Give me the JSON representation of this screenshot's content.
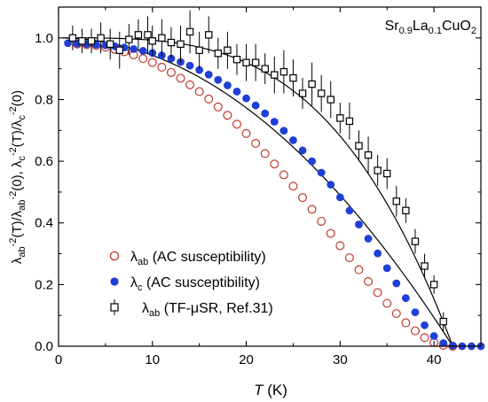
{
  "chart_data": {
    "type": "scatter",
    "annotation": {
      "base": "Sr",
      "sub1": "0.9",
      "mid": "La",
      "sub2": "0.1",
      "tail": "CuO",
      "sub3": "2"
    },
    "xlabel": {
      "italic": "T",
      "rest": " (K)"
    },
    "ylabel": {
      "p1": "λ",
      "s1": "ab",
      "p2": "-2",
      "p3": "(T)/λ",
      "s2": "ab",
      "p4": "-2",
      "p5": "(0), λ",
      "s3": "c",
      "p6": "-2",
      "p7": "(T)/λ",
      "s4": "c",
      "p8": "-2",
      "p9": "(0)"
    },
    "xlim": [
      0,
      45
    ],
    "ylim": [
      0.0,
      1.1
    ],
    "x_ticks": [
      "0",
      "10",
      "20",
      "30",
      "40"
    ],
    "y_ticks": [
      "0.0",
      "0.2",
      "0.4",
      "0.6",
      "0.8",
      "1.0"
    ],
    "legend": {
      "placement": "bottom-left",
      "entries": [
        {
          "symbol": "λ",
          "sub": "ab",
          "text": " (AC susceptibility)"
        },
        {
          "symbol": "λ",
          "sub": "c",
          "text": " (AC susceptibility)"
        },
        {
          "symbol": "λ",
          "sub": "ab",
          "text": " (TF-μSR, Ref.31)"
        }
      ]
    },
    "colors": {
      "ab_marker": "#c0392b",
      "c_marker": "#1f3fd6",
      "musr_marker": "#000000",
      "fit_line": "#000000"
    },
    "series": [
      {
        "id": "ab",
        "tc": 42.0,
        "points": [
          [
            2,
            0.98
          ],
          [
            3,
            0.978
          ],
          [
            4,
            0.975
          ],
          [
            5,
            0.97
          ],
          [
            6,
            0.963
          ],
          [
            7,
            0.955
          ],
          [
            8,
            0.945
          ],
          [
            9,
            0.933
          ],
          [
            10,
            0.92
          ],
          [
            11,
            0.905
          ],
          [
            12,
            0.888
          ],
          [
            13,
            0.869
          ],
          [
            14,
            0.848
          ],
          [
            15,
            0.826
          ],
          [
            16,
            0.802
          ],
          [
            17,
            0.776
          ],
          [
            18,
            0.749
          ],
          [
            19,
            0.72
          ],
          [
            20,
            0.69
          ],
          [
            21,
            0.658
          ],
          [
            22,
            0.625
          ],
          [
            23,
            0.591
          ],
          [
            24,
            0.556
          ],
          [
            25,
            0.519
          ],
          [
            26,
            0.482
          ],
          [
            27,
            0.444
          ],
          [
            28,
            0.405
          ],
          [
            29,
            0.366
          ],
          [
            30,
            0.326
          ],
          [
            31,
            0.287
          ],
          [
            32,
            0.248
          ],
          [
            33,
            0.21
          ],
          [
            34,
            0.174
          ],
          [
            35,
            0.139
          ],
          [
            36,
            0.106
          ],
          [
            37,
            0.076
          ],
          [
            38,
            0.05
          ],
          [
            39,
            0.028
          ],
          [
            40,
            0.012
          ],
          [
            41,
            0.003
          ],
          [
            42,
            0.0
          ]
        ]
      },
      {
        "id": "c",
        "tc": 42.5,
        "points": [
          [
            1,
            0.983
          ],
          [
            2,
            0.982
          ],
          [
            3,
            0.98
          ],
          [
            4,
            0.978
          ],
          [
            5,
            0.976
          ],
          [
            6,
            0.973
          ],
          [
            7,
            0.969
          ],
          [
            8,
            0.964
          ],
          [
            9,
            0.958
          ],
          [
            10,
            0.951
          ],
          [
            11,
            0.943
          ],
          [
            12,
            0.933
          ],
          [
            13,
            0.922
          ],
          [
            14,
            0.91
          ],
          [
            15,
            0.896
          ],
          [
            16,
            0.881
          ],
          [
            17,
            0.864
          ],
          [
            18,
            0.846
          ],
          [
            19,
            0.826
          ],
          [
            20,
            0.804
          ],
          [
            21,
            0.781
          ],
          [
            22,
            0.755
          ],
          [
            23,
            0.728
          ],
          [
            24,
            0.699
          ],
          [
            25,
            0.668
          ],
          [
            26,
            0.635
          ],
          [
            27,
            0.6
          ],
          [
            28,
            0.563
          ],
          [
            29,
            0.524
          ],
          [
            30,
            0.483
          ],
          [
            31,
            0.44
          ],
          [
            32,
            0.395
          ],
          [
            33,
            0.349
          ],
          [
            34,
            0.301
          ],
          [
            35,
            0.253
          ],
          [
            36,
            0.204
          ],
          [
            37,
            0.156
          ],
          [
            38,
            0.11
          ],
          [
            39,
            0.068
          ],
          [
            40,
            0.033
          ],
          [
            41,
            0.01
          ],
          [
            42,
            0.002
          ],
          [
            43,
            0.0
          ],
          [
            44,
            0.0
          ],
          [
            45,
            0.0
          ]
        ]
      },
      {
        "id": "musr",
        "tc": 42.0,
        "points": [
          [
            1.5,
            1.0,
            0.04
          ],
          [
            2.5,
            0.99,
            0.04
          ],
          [
            3.5,
            0.99,
            0.04
          ],
          [
            4.5,
            1.0,
            0.05
          ],
          [
            5.5,
            0.98,
            0.05
          ],
          [
            6.5,
            0.96,
            0.06
          ],
          [
            7.5,
            0.995,
            0.05
          ],
          [
            8.5,
            1.01,
            0.05
          ],
          [
            9.5,
            1.01,
            0.06
          ],
          [
            10,
            0.99,
            0.05
          ],
          [
            11,
            1.0,
            0.06
          ],
          [
            12,
            0.985,
            0.05
          ],
          [
            13,
            0.98,
            0.06
          ],
          [
            14,
            1.02,
            0.07
          ],
          [
            15,
            0.96,
            0.06
          ],
          [
            16,
            1.01,
            0.06
          ],
          [
            17,
            0.95,
            0.05
          ],
          [
            18,
            0.96,
            0.06
          ],
          [
            19,
            0.93,
            0.05
          ],
          [
            20,
            0.92,
            0.06
          ],
          [
            21,
            0.92,
            0.06
          ],
          [
            22,
            0.9,
            0.05
          ],
          [
            23,
            0.88,
            0.06
          ],
          [
            24,
            0.89,
            0.07
          ],
          [
            25,
            0.87,
            0.06
          ],
          [
            26,
            0.82,
            0.05
          ],
          [
            27,
            0.85,
            0.07
          ],
          [
            28,
            0.82,
            0.06
          ],
          [
            29,
            0.8,
            0.06
          ],
          [
            30,
            0.74,
            0.05
          ],
          [
            31,
            0.73,
            0.06
          ],
          [
            32,
            0.65,
            0.05
          ],
          [
            33,
            0.62,
            0.06
          ],
          [
            34,
            0.57,
            0.05
          ],
          [
            35,
            0.56,
            0.05
          ],
          [
            36,
            0.47,
            0.05
          ],
          [
            37,
            0.44,
            0.04
          ],
          [
            38,
            0.34,
            0.04
          ],
          [
            39,
            0.26,
            0.04
          ],
          [
            40,
            0.2,
            0.03
          ],
          [
            41,
            0.08,
            0.03
          ]
        ]
      }
    ]
  }
}
